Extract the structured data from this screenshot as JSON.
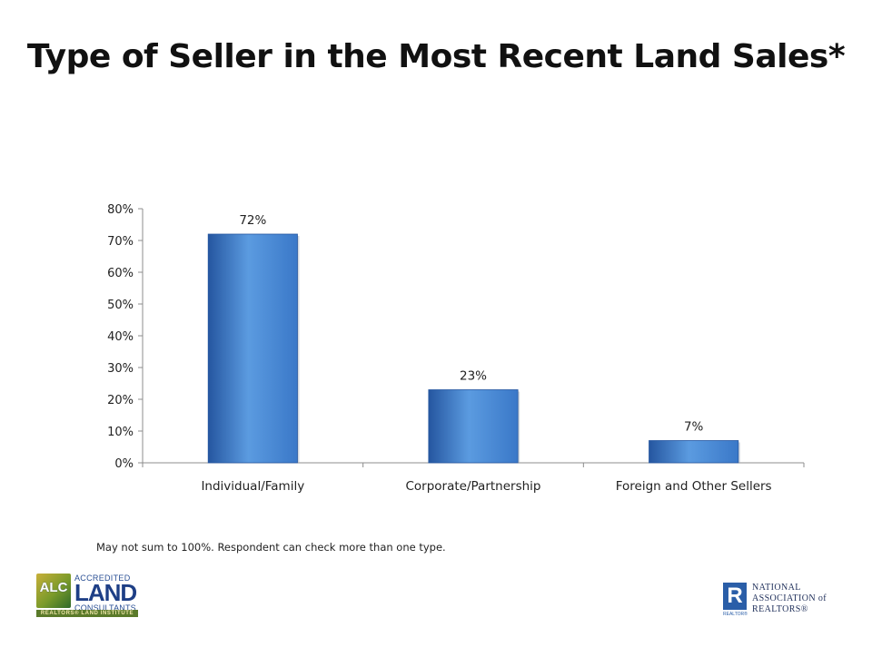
{
  "slide": {
    "title": "Type of Seller in the Most Recent Land Sales*",
    "footnote": "May not sum to 100%. Respondent can check more than one type."
  },
  "chart_data": {
    "type": "bar",
    "categories": [
      "Individual/Family",
      "Corporate/Partnership",
      "Foreign and Other Sellers"
    ],
    "values": [
      72,
      23,
      7
    ],
    "data_labels": [
      "72%",
      "23%",
      "7%"
    ],
    "ylim": [
      0,
      80
    ],
    "yticks": [
      0,
      10,
      20,
      30,
      40,
      50,
      60,
      70,
      80
    ],
    "ytick_labels": [
      "0%",
      "10%",
      "20%",
      "30%",
      "40%",
      "50%",
      "60%",
      "70%",
      "80%"
    ],
    "grid": false,
    "legend": "none",
    "bar_color": "#3a78c8",
    "bar_color_light": "#5b9be0",
    "bar_color_dark": "#2556a0"
  },
  "logos": {
    "alc": {
      "badge": "ALC",
      "line1": "ACCREDITED",
      "line2": "LAND",
      "line3": "CONSULTANTS",
      "strip": "REALTORS® LAND INSTITUTE"
    },
    "nar": {
      "mark": "R",
      "mark_sub": "REALTOR®",
      "line1": "NATIONAL",
      "line2": "ASSOCIATION of",
      "line3": "REALTORS®"
    }
  }
}
